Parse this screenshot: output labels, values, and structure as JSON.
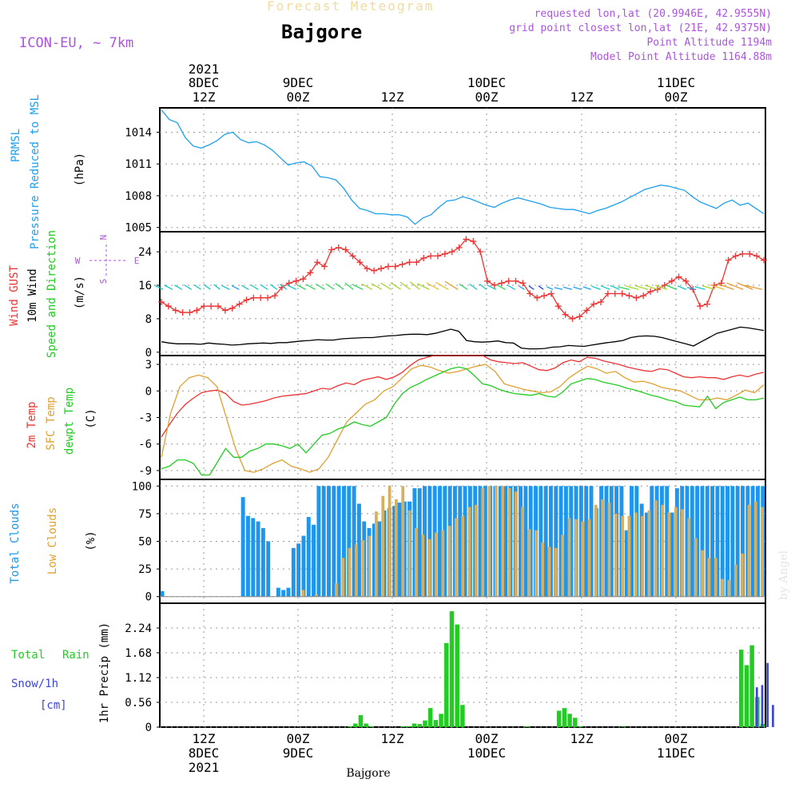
{
  "header": {
    "title_top": "Forecast Meteogram",
    "location": "Bajgore",
    "model": "ICON-EU, ~ 7km",
    "requested": "requested lon,lat (20.9946E, 42.9555N)",
    "grid_point": "grid point closest lon,lat (21E, 42.9375N)",
    "point_alt": "Point Altitude 1194m",
    "model_alt": "Model Point Altitude 1164.88m"
  },
  "footer": {
    "location": "Bajgore",
    "watermark": "by Angel"
  },
  "colors": {
    "pressure": "#1ea0ee",
    "gust": "#ee3333",
    "wind10": "#000000",
    "temp2m": "#ee3333",
    "sfc": "#e0a030",
    "dewpt": "#22cc22",
    "total_clouds": "#1e96ee",
    "low_clouds": "#d6b060",
    "rain": "#22cc22",
    "snow": "#3a46d6",
    "purple": "#aa55dd"
  },
  "chart_data": [
    {
      "type": "line",
      "title": "PRMSL Pressure Reduced to MSL",
      "ylabel": "(hPa)",
      "ylim": [
        1004.6,
        1016.3
      ],
      "yticks": [
        1005,
        1008,
        1011,
        1014
      ],
      "series": [
        {
          "name": "PRMSL",
          "values": [
            1016.1,
            1015.2,
            1014.9,
            1013.5,
            1012.7,
            1012.5,
            1012.8,
            1013.2,
            1013.8,
            1014.0,
            1013.3,
            1013.0,
            1013.1,
            1012.8,
            1012.3,
            1011.6,
            1010.9,
            1011.1,
            1011.2,
            1010.8,
            1009.8,
            1009.7,
            1009.5,
            1008.7,
            1007.6,
            1006.8,
            1006.6,
            1006.3,
            1006.3,
            1006.2,
            1006.2,
            1006.0,
            1005.3,
            1005.9,
            1006.2,
            1006.9,
            1007.5,
            1007.6,
            1007.9,
            1007.7,
            1007.4,
            1007.1,
            1006.9,
            1007.3,
            1007.6,
            1007.8,
            1007.6,
            1007.4,
            1007.2,
            1006.9,
            1006.8,
            1006.7,
            1006.7,
            1006.5,
            1006.3,
            1006.6,
            1006.8,
            1007.1,
            1007.4,
            1007.8,
            1008.2,
            1008.6,
            1008.8,
            1009.0,
            1008.9,
            1008.7,
            1008.5,
            1007.9,
            1007.4,
            1007.1,
            1006.8,
            1007.3,
            1007.6,
            1007.1,
            1007.3,
            1006.8,
            1006.3
          ]
        }
      ]
    },
    {
      "type": "line",
      "title": "Wind GUST / 10m Wind Speed and Direction",
      "ylabel": "(m/s)",
      "ylim": [
        -0.8,
        28.8
      ],
      "yticks": [
        0,
        8,
        16,
        24
      ],
      "compass": {
        "n": "N",
        "s": "S",
        "w": "W",
        "e": "E"
      },
      "series": [
        {
          "name": "Wind GUST",
          "values": [
            12,
            11,
            10,
            9.5,
            9.5,
            10,
            11,
            11,
            11,
            10,
            10.5,
            11.5,
            12.5,
            13,
            13,
            13,
            13.5,
            15.5,
            16.5,
            17,
            17.5,
            19,
            21.5,
            20.5,
            24.5,
            25,
            24.5,
            23,
            21.5,
            20,
            19.5,
            20,
            20.5,
            20.5,
            21,
            21.5,
            21.5,
            22.5,
            23,
            23,
            23.5,
            24,
            25,
            27,
            26.5,
            24,
            17,
            16,
            16.5,
            17,
            17,
            16.5,
            14,
            13,
            13.5,
            14,
            11,
            9,
            8,
            8.5,
            10,
            11.5,
            12,
            14,
            14,
            14,
            13.5,
            13,
            13.5,
            14.5,
            15,
            16,
            17,
            18,
            17,
            15,
            11,
            11.5,
            16,
            16.5,
            22,
            23,
            23.5,
            23.5,
            23,
            22
          ]
        },
        {
          "name": "10m Wind",
          "values": [
            2.5,
            2.2,
            2,
            2,
            2,
            1.9,
            2.2,
            2,
            1.9,
            1.7,
            1.8,
            2,
            2.1,
            2.2,
            2.1,
            2.3,
            2.3,
            2.5,
            2.7,
            2.8,
            3,
            2.9,
            2.9,
            3.2,
            3.3,
            3.4,
            3.5,
            3.5,
            3.7,
            3.9,
            4,
            4.2,
            4.3,
            4.3,
            4.2,
            4.5,
            5,
            5.5,
            5,
            2.8,
            2.5,
            2.4,
            2.5,
            2.7,
            2.3,
            2.2,
            1,
            0.8,
            0.8,
            0.9,
            1.2,
            1.3,
            1.6,
            1.5,
            1.4,
            1.7,
            2,
            2.3,
            2.5,
            2.8,
            3.5,
            3.8,
            3.9,
            3.8,
            3.5,
            3,
            2.5,
            2,
            1.5,
            2.5,
            3.5,
            4.5,
            5,
            5.5,
            6,
            5.8,
            5.5,
            5.2
          ]
        }
      ]
    },
    {
      "type": "line",
      "title": "2m Temp / SFC Temp / dewpt Temp",
      "ylabel": "(C)",
      "ylim": [
        -10,
        4
      ],
      "yticks": [
        -9,
        -6,
        -3,
        0,
        3
      ],
      "series": [
        {
          "name": "2m Temp",
          "values": [
            -5.2,
            -3.8,
            -2.5,
            -1.5,
            -0.8,
            -0.2,
            0,
            0.1,
            -0.3,
            -1.2,
            -1.6,
            -1.5,
            -1.3,
            -1.1,
            -0.8,
            -0.6,
            -0.5,
            -0.4,
            -0.3,
            0,
            0.3,
            0.2,
            0.6,
            0.9,
            0.7,
            1.2,
            1.4,
            1.6,
            1.3,
            1.6,
            2.1,
            2.9,
            3.5,
            3.8,
            4,
            4,
            4,
            4,
            4,
            4,
            4,
            3.5,
            3.3,
            3.2,
            3.1,
            3.2,
            2.8,
            2.4,
            2.3,
            2.6,
            3.2,
            3.5,
            3.3,
            3.8,
            3.7,
            3.4,
            3.2,
            3,
            2.7,
            2.5,
            2.3,
            2.2,
            2.5,
            2.4,
            2,
            1.6,
            1.5,
            1.6,
            1.5,
            1.5,
            1.3,
            1.6,
            1.8,
            1.6,
            1.9,
            2.1
          ]
        },
        {
          "name": "SFC Temp",
          "values": [
            -7.5,
            -2.5,
            0.5,
            1.5,
            1.8,
            1.5,
            0.5,
            -3,
            -6.5,
            -9,
            -9.2,
            -8.8,
            -8.2,
            -7.8,
            -8.5,
            -8.8,
            -9.2,
            -8.8,
            -7.5,
            -5.5,
            -3.5,
            -2.5,
            -1.5,
            -1,
            0,
            0.5,
            1.5,
            2.5,
            2.9,
            2.7,
            2.3,
            2,
            2.2,
            2.5,
            2.8,
            3,
            2.2,
            0.8,
            0.5,
            0.2,
            0,
            -0.2,
            -0.1,
            0.5,
            1.5,
            2.2,
            2.8,
            2.5,
            2,
            2.2,
            1.5,
            1,
            1.1,
            0.8,
            0.4,
            0.2,
            0,
            -0.5,
            -1,
            -1,
            -0.8,
            -1,
            -0.5,
            0.1,
            -0.2,
            0.7
          ]
        },
        {
          "name": "dewpt Temp",
          "values": [
            -8.8,
            -8.5,
            -7.8,
            -7.8,
            -8.2,
            -9.5,
            -9.5,
            -8,
            -6.5,
            -7.5,
            -7.5,
            -6.8,
            -6.5,
            -6,
            -6,
            -6.2,
            -6.5,
            -6,
            -7,
            -6,
            -5,
            -4.8,
            -4.3,
            -4,
            -3.5,
            -3.8,
            -4,
            -3.5,
            -3,
            -1.5,
            -0.3,
            0.4,
            0.8,
            1.3,
            1.7,
            2.1,
            2.5,
            2.7,
            2.5,
            1.7,
            0.8,
            0.6,
            0.2,
            -0.1,
            -0.3,
            -0.4,
            -0.5,
            -0.3,
            -0.6,
            -0.7,
            -0.1,
            0.8,
            1.1,
            1.4,
            1.3,
            1,
            0.8,
            0.6,
            0.3,
            0.1,
            -0.2,
            -0.5,
            -0.7,
            -1,
            -1.2,
            -1.6,
            -1.7,
            -1.8,
            -0.6,
            -2,
            -1.3,
            -1,
            -0.7,
            -1,
            -1,
            -0.8
          ]
        }
      ]
    },
    {
      "type": "bar",
      "title": "Total Clouds / Low Clouds",
      "ylabel": "(%)",
      "ylim": [
        -6,
        106
      ],
      "yticks": [
        0,
        25,
        50,
        75,
        100
      ],
      "series": [
        {
          "name": "Total Clouds",
          "values": [
            5,
            0,
            0,
            0,
            0,
            0,
            0,
            0,
            0,
            0,
            0,
            0,
            0,
            0,
            0,
            0,
            90,
            73,
            71,
            68,
            62,
            50,
            0,
            8,
            6,
            8,
            44,
            48,
            55,
            72,
            65,
            100,
            100,
            100,
            100,
            100,
            100,
            100,
            100,
            84,
            68,
            62,
            66,
            68,
            78,
            80,
            82,
            85,
            86,
            86,
            98,
            98,
            100,
            100,
            100,
            100,
            100,
            100,
            100,
            100,
            100,
            100,
            100,
            100,
            100,
            100,
            100,
            100,
            100,
            100,
            100,
            100,
            100,
            100,
            100,
            100,
            100,
            100,
            100,
            100,
            100,
            100,
            100,
            100,
            100,
            100,
            80,
            100,
            100,
            100,
            100,
            100,
            60,
            100,
            100,
            84,
            76,
            100,
            100,
            100,
            100,
            76,
            98,
            100,
            100,
            100,
            100,
            100,
            100,
            100,
            100,
            100,
            100,
            100,
            100,
            100,
            100,
            100,
            100,
            100
          ]
        },
        {
          "name": "Low Clouds",
          "values": [
            0,
            0,
            0,
            0,
            0,
            0,
            0,
            0,
            0,
            0,
            0,
            0,
            0,
            0,
            0,
            0,
            0,
            0,
            0,
            0,
            0,
            6,
            0,
            2,
            0,
            0,
            12,
            35,
            44,
            47,
            51,
            55,
            77,
            91,
            100,
            88,
            100,
            78,
            62,
            56,
            52,
            58,
            60,
            64,
            71,
            73,
            81,
            83,
            98,
            100,
            100,
            100,
            98,
            95,
            81,
            61,
            60,
            49,
            45,
            44,
            56,
            71,
            70,
            68,
            70,
            83,
            88,
            85,
            75,
            73,
            73,
            76,
            73,
            78,
            87,
            83,
            76,
            81,
            79,
            71,
            53,
            42,
            35,
            35,
            16,
            15,
            29,
            39,
            83,
            86,
            81
          ]
        }
      ]
    },
    {
      "type": "bar",
      "title": "Total Rain / Snow/1h [cm]",
      "ylabel": "1hr Precip (mm)",
      "ylim": [
        0,
        2.8
      ],
      "yticks": [
        0,
        0.56,
        1.12,
        1.68,
        2.24
      ],
      "series": [
        {
          "name": "Total Rain",
          "values": [
            0,
            0,
            0,
            0,
            0,
            0,
            0,
            0,
            0,
            0,
            0,
            0,
            0,
            0,
            0,
            0,
            0,
            0,
            0,
            0,
            0,
            0,
            0,
            0,
            0,
            0,
            0,
            0,
            0,
            0,
            0,
            0,
            0,
            0,
            0,
            0.02,
            0.08,
            0.27,
            0.08,
            0.02,
            0,
            0,
            0,
            0,
            0,
            0.02,
            0.02,
            0.08,
            0.07,
            0.15,
            0.43,
            0.16,
            0.3,
            1.9,
            2.62,
            2.32,
            0.5,
            0,
            0,
            0,
            0,
            0,
            0,
            0,
            0,
            0,
            0,
            0,
            0.02,
            0,
            0,
            0,
            0,
            0,
            0.37,
            0.43,
            0.3,
            0.21,
            0.02,
            0,
            0,
            0,
            0,
            0,
            0,
            0,
            0.01,
            0,
            0,
            0,
            0,
            0,
            0,
            0,
            0,
            0,
            0,
            0,
            0,
            0,
            0,
            0,
            0,
            0,
            0,
            0,
            0,
            0,
            1.75,
            1.4,
            1.85,
            0.68,
            0.07
          ]
        },
        {
          "name": "Snow/1h",
          "values": [
            0,
            0,
            0,
            0,
            0,
            0,
            0,
            0,
            0,
            0,
            0,
            0,
            0,
            0,
            0,
            0,
            0,
            0,
            0,
            0,
            0,
            0,
            0,
            0,
            0,
            0,
            0,
            0,
            0,
            0,
            0,
            0,
            0,
            0,
            0,
            0,
            0,
            0,
            0,
            0,
            0,
            0,
            0,
            0,
            0,
            0,
            0,
            0,
            0,
            0,
            0,
            0,
            0,
            0,
            0,
            0,
            0,
            0,
            0,
            0,
            0,
            0,
            0,
            0,
            0,
            0,
            0,
            0,
            0,
            0,
            0,
            0,
            0,
            0,
            0,
            0,
            0,
            0,
            0,
            0,
            0,
            0,
            0,
            0,
            0,
            0,
            0,
            0,
            0,
            0,
            0,
            0,
            0,
            0,
            0,
            0,
            0,
            0,
            0,
            0,
            0,
            0,
            0,
            0,
            0,
            0,
            0,
            0,
            0,
            0,
            0,
            0.9,
            0.95,
            1.45,
            0.5,
            0
          ]
        }
      ]
    }
  ],
  "time_axis": {
    "top": [
      {
        "line1": "2021",
        "line2": "8DEC",
        "line3": "12Z"
      },
      {
        "line1": "",
        "line2": "9DEC",
        "line3": "00Z"
      },
      {
        "line1": "",
        "line2": "",
        "line3": "12Z"
      },
      {
        "line1": "",
        "line2": "10DEC",
        "line3": "00Z"
      },
      {
        "line1": "",
        "line2": "",
        "line3": "12Z"
      },
      {
        "line1": "",
        "line2": "11DEC",
        "line3": "00Z"
      }
    ],
    "bottom": [
      {
        "line1": "12Z",
        "line2": "8DEC",
        "line3": "2021"
      },
      {
        "line1": "00Z",
        "line2": "9DEC",
        "line3": ""
      },
      {
        "line1": "12Z",
        "line2": "",
        "line3": ""
      },
      {
        "line1": "00Z",
        "line2": "10DEC",
        "line3": ""
      },
      {
        "line1": "12Z",
        "line2": "",
        "line3": ""
      },
      {
        "line1": "00Z",
        "line2": "11DEC",
        "line3": ""
      }
    ]
  }
}
